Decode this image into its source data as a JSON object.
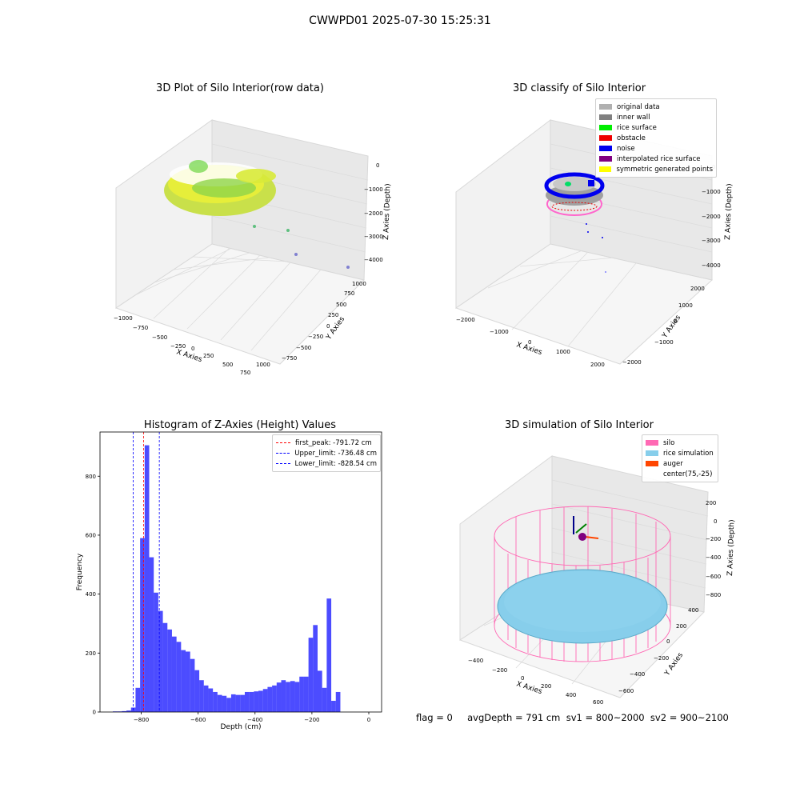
{
  "suptitle": "CWWPD01 2025-07-30 15:25:31",
  "footer": "flag = 0     avgDepth = 791 cm  sv1 = 800~2000  sv2 = 900~2100",
  "panels": {
    "raw": {
      "title": "3D Plot of Silo Interior(row data)",
      "xlabel": "X Axies",
      "ylabel": "Y Axies",
      "zlabel": "Z Axies (Depth)",
      "xticks": [
        "−1000",
        "−750",
        "−500",
        "−250",
        "0",
        "250",
        "500",
        "750",
        "1000"
      ],
      "yticks": [
        "−750",
        "−500",
        "−250",
        "0",
        "250",
        "500",
        "750",
        "1000"
      ],
      "zticks": [
        "0",
        "−1000",
        "−2000",
        "−3000",
        "−4000"
      ]
    },
    "classify": {
      "title": "3D classify of Silo Interior",
      "xlabel": "X Axies",
      "ylabel": "Y Axies",
      "zlabel": "Z Axies (Depth)",
      "xticks": [
        "−2000",
        "−1000",
        "0",
        "1000",
        "2000"
      ],
      "yticks": [
        "−2000",
        "−1000",
        "0",
        "1000",
        "2000"
      ],
      "zticks": [
        "0",
        "−1000",
        "−2000",
        "−3000",
        "−4000"
      ],
      "legend": [
        {
          "label": "original data",
          "color": "#b0b0b0"
        },
        {
          "label": "inner wall",
          "color": "#808080"
        },
        {
          "label": "rice surface",
          "color": "#00ee00"
        },
        {
          "label": "obstacle",
          "color": "#ee0000"
        },
        {
          "label": "noise",
          "color": "#0000ee"
        },
        {
          "label": "interpolated rice surface",
          "color": "#800080"
        },
        {
          "label": "symmetric generated points",
          "color": "#ffff00"
        }
      ]
    },
    "simulation": {
      "title": "3D simulation of Silo Interior",
      "xlabel": "X Axies",
      "ylabel": "Y Axies",
      "zlabel": "Z Axies (Depth)",
      "xticks": [
        "−400",
        "−200",
        "0",
        "200",
        "400",
        "600"
      ],
      "yticks": [
        "−600",
        "−400",
        "−200",
        "0",
        "200",
        "400"
      ],
      "zticks": [
        "200",
        "0",
        "−200",
        "−400",
        "−600",
        "−800"
      ],
      "legend": [
        {
          "label": "silo",
          "color": "#ff69b4"
        },
        {
          "label": "rice simulation",
          "color": "#87ceeb"
        },
        {
          "label": "auger",
          "color": "#ff4500"
        },
        {
          "label": "center(75,-25)",
          "color": ""
        }
      ]
    }
  },
  "chart_data": {
    "type": "bar",
    "title": "Histogram of Z-Axies (Height) Values",
    "xlabel": "Depth (cm)",
    "ylabel": "Frequency",
    "xlim": [
      -945,
      45
    ],
    "ylim": [
      0,
      950
    ],
    "xticks": [
      -800,
      -600,
      -400,
      -200,
      0
    ],
    "yticks": [
      0,
      200,
      400,
      600,
      800
    ],
    "bar_color": "#0000ff",
    "bin_width": 16,
    "bin_starts": [
      -900,
      -884,
      -868,
      -852,
      -836,
      -820,
      -804,
      -788,
      -772,
      -756,
      -740,
      -724,
      -708,
      -692,
      -676,
      -660,
      -644,
      -628,
      -612,
      -596,
      -580,
      -564,
      -548,
      -532,
      -516,
      -500,
      -484,
      -468,
      -452,
      -436,
      -420,
      -404,
      -388,
      -372,
      -356,
      -340,
      -324,
      -308,
      -292,
      -276,
      -260,
      -244,
      -228,
      -212,
      -196,
      -180,
      -164,
      -148,
      -132,
      -116,
      -100,
      -84,
      -68,
      -52,
      -36,
      -20,
      -4
    ],
    "values": [
      2,
      2,
      3,
      5,
      15,
      82,
      590,
      905,
      525,
      405,
      343,
      302,
      280,
      256,
      238,
      210,
      205,
      180,
      142,
      108,
      90,
      80,
      68,
      58,
      55,
      48,
      60,
      58,
      58,
      68,
      68,
      70,
      72,
      78,
      85,
      90,
      100,
      108,
      102,
      105,
      102,
      120,
      120,
      252,
      295,
      140,
      82,
      385,
      38,
      68,
      0,
      0,
      0,
      0,
      0,
      0,
      0
    ],
    "lines": [
      {
        "label": "first_peak: -791.72 cm",
        "x": -791.72,
        "color": "#ff0000"
      },
      {
        "label": "Upper_limit: -736.48 cm",
        "x": -736.48,
        "color": "#0000ff"
      },
      {
        "label": "Lower_limit: -828.54 cm",
        "x": -828.54,
        "color": "#0000ff"
      }
    ]
  }
}
